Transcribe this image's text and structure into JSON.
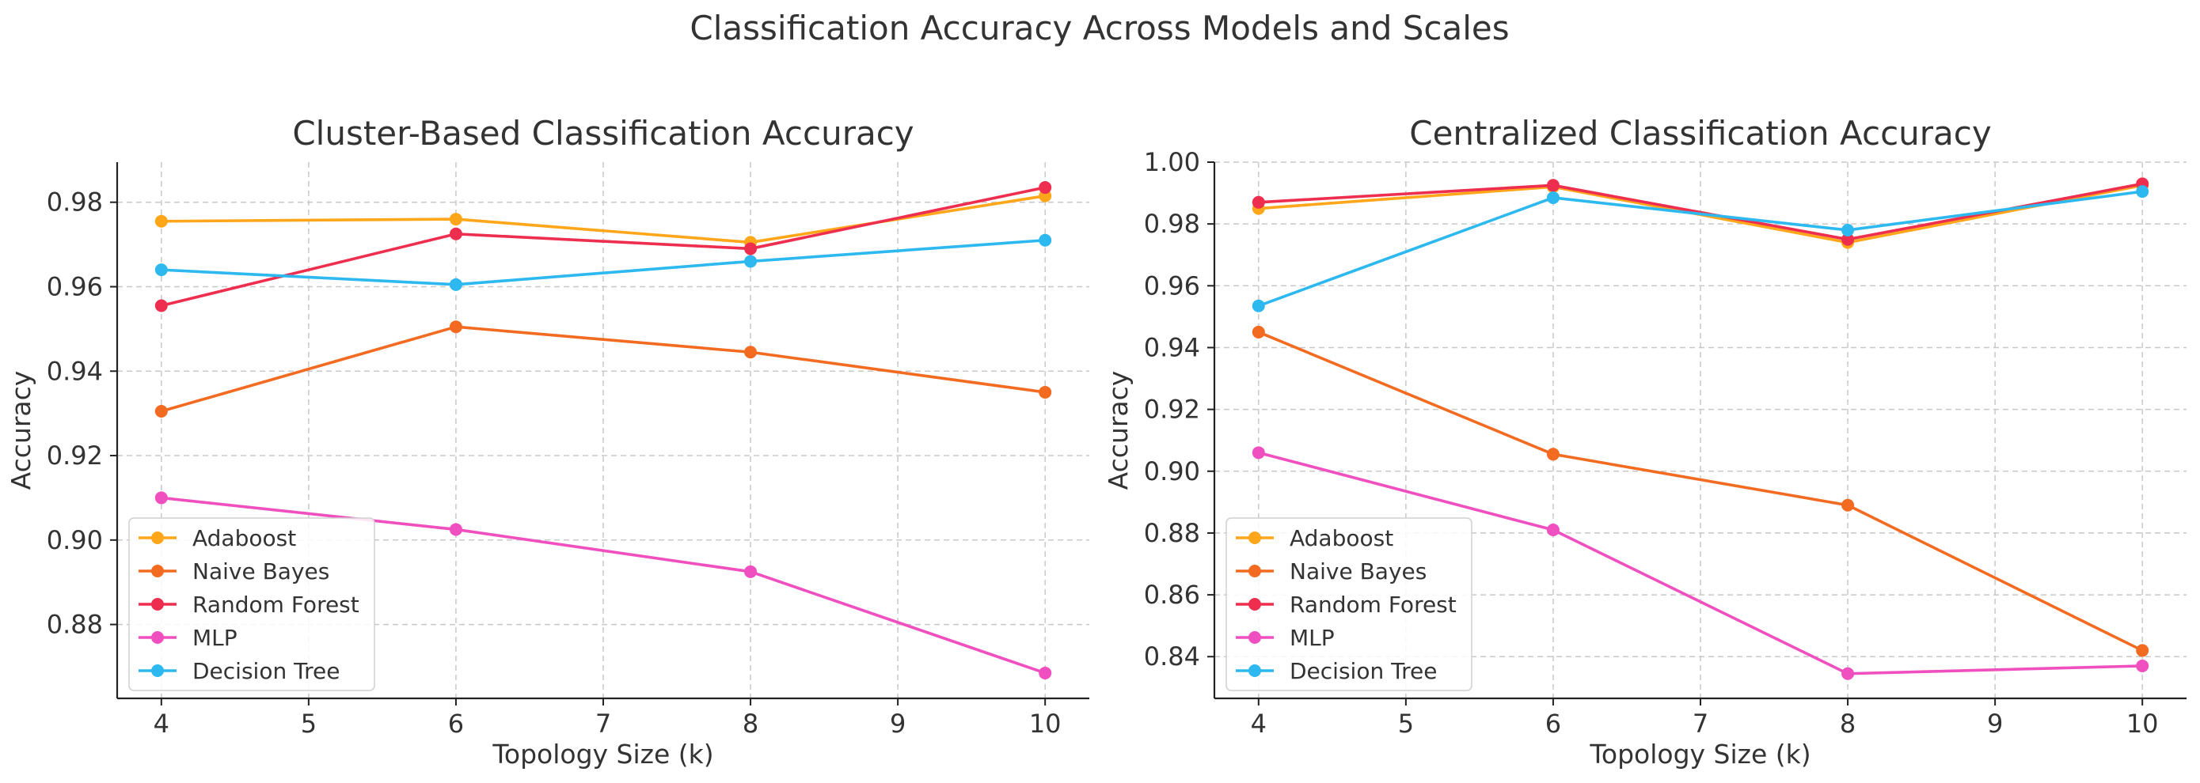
{
  "figure": {
    "suptitle": "Classification Accuracy Across Models and Scales"
  },
  "colors": {
    "Adaboost": "#FFA61A",
    "Naive Bayes": "#F26B21",
    "Random Forest": "#EE2E4E",
    "MLP": "#F04FBF",
    "Decision Tree": "#2DB9F0"
  },
  "chart_data": [
    {
      "type": "line",
      "title": "Cluster-Based Classification Accuracy",
      "xlabel": "Topology Size (k)",
      "ylabel": "Accuracy",
      "x": [
        4,
        6,
        8,
        10
      ],
      "xlim": [
        3.7,
        10.3
      ],
      "ylim": [
        0.8625,
        0.9895
      ],
      "xticks": [
        4,
        5,
        6,
        7,
        8,
        9,
        10
      ],
      "yticks": [
        0.88,
        0.9,
        0.92,
        0.94,
        0.96,
        0.98
      ],
      "ytick_labels": [
        "0.88",
        "0.90",
        "0.92",
        "0.94",
        "0.96",
        "0.98"
      ],
      "grid": true,
      "legend_position": "lower-left",
      "series": [
        {
          "name": "Adaboost",
          "values": [
            0.9755,
            0.976,
            0.9705,
            0.9815
          ]
        },
        {
          "name": "Naive Bayes",
          "values": [
            0.9305,
            0.9505,
            0.9445,
            0.935
          ]
        },
        {
          "name": "Random Forest",
          "values": [
            0.9555,
            0.9725,
            0.969,
            0.9835
          ]
        },
        {
          "name": "MLP",
          "values": [
            0.91,
            0.9025,
            0.8925,
            0.8685
          ]
        },
        {
          "name": "Decision Tree",
          "values": [
            0.964,
            0.9605,
            0.966,
            0.971
          ]
        }
      ]
    },
    {
      "type": "line",
      "title": "Centralized Classification Accuracy",
      "xlabel": "Topology Size (k)",
      "ylabel": "Accuracy",
      "x": [
        4,
        6,
        8,
        10
      ],
      "xlim": [
        3.7,
        10.3
      ],
      "ylim": [
        0.8265,
        1.0
      ],
      "xticks": [
        4,
        5,
        6,
        7,
        8,
        9,
        10
      ],
      "yticks": [
        0.84,
        0.86,
        0.88,
        0.9,
        0.92,
        0.94,
        0.96,
        0.98,
        1.0
      ],
      "ytick_labels": [
        "0.84",
        "0.86",
        "0.88",
        "0.90",
        "0.92",
        "0.94",
        "0.96",
        "0.98",
        "1.00"
      ],
      "grid": true,
      "legend_position": "lower-left",
      "series": [
        {
          "name": "Adaboost",
          "values": [
            0.985,
            0.992,
            0.974,
            0.9925
          ]
        },
        {
          "name": "Naive Bayes",
          "values": [
            0.945,
            0.9055,
            0.889,
            0.842
          ]
        },
        {
          "name": "Random Forest",
          "values": [
            0.987,
            0.9925,
            0.975,
            0.993
          ]
        },
        {
          "name": "MLP",
          "values": [
            0.906,
            0.881,
            0.8345,
            0.837
          ]
        },
        {
          "name": "Decision Tree",
          "values": [
            0.9535,
            0.9885,
            0.978,
            0.9905
          ]
        }
      ]
    }
  ]
}
